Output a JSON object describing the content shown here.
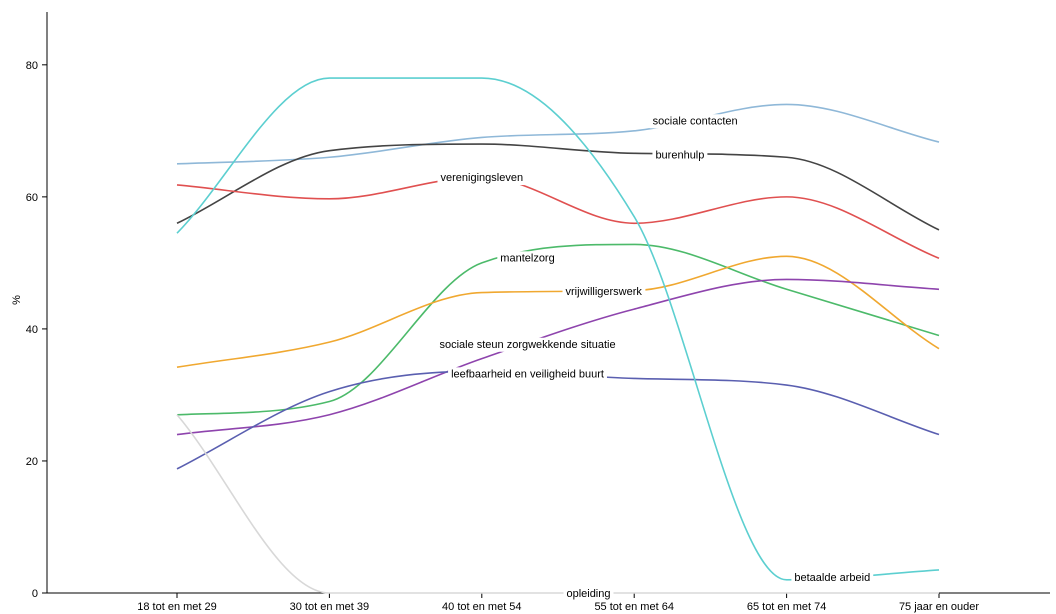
{
  "chart_data": {
    "type": "line",
    "ylabel": "%",
    "xlabel": "",
    "ylim": [
      0,
      88
    ],
    "yticks": [
      0,
      20,
      40,
      60,
      80
    ],
    "categories": [
      "18 tot en met 29",
      "30 tot en met 39",
      "40 tot en met 54",
      "55 tot en met 64",
      "65 tot en met 74",
      "75 jaar en ouder"
    ],
    "grid": false,
    "series": [
      {
        "name": "sociale contacten",
        "color": "#8fb8d8",
        "values": [
          65,
          66,
          69,
          70,
          74,
          68.3
        ],
        "label_after": 3.4
      },
      {
        "name": "burenhulp",
        "color": "#444444",
        "values": [
          56,
          67,
          68,
          66.6,
          66,
          55
        ],
        "label_after": 3.3
      },
      {
        "name": "verenigingsleven",
        "color": "#e05050",
        "values": [
          61.8,
          59.7,
          63,
          56,
          60,
          50.7
        ],
        "label_after": 2.0
      },
      {
        "name": "mantelzorg",
        "color": "#4cba6a",
        "values": [
          27,
          29,
          50,
          52.8,
          46,
          39
        ],
        "label_after": 2.3
      },
      {
        "name": "vrijwilligerswerk",
        "color": "#f0a830",
        "values": [
          34.2,
          38,
          45.5,
          45.8,
          51,
          37
        ],
        "label_after": 2.8
      },
      {
        "name": "sociale steun zorgwekkende situatie",
        "color": "#8e44ad",
        "values": [
          24,
          27,
          35.5,
          43,
          47.5,
          46
        ],
        "label_after": 2.3
      },
      {
        "name": "leefbaarheid en veiligheid buurt",
        "color": "#5a5fb0",
        "values": [
          18.8,
          30.5,
          33.6,
          32.5,
          31.5,
          24
        ],
        "label_after": 2.3
      },
      {
        "name": "betaalde arbeid",
        "color": "#5ccfd0",
        "values": [
          54.5,
          78,
          78,
          57,
          2,
          3.5
        ],
        "label_after": 4.3
      },
      {
        "name": "opleiding",
        "color": "#d8d8d8",
        "values": [
          27,
          0,
          0,
          0,
          0,
          0
        ],
        "label_after": 2.7
      }
    ]
  }
}
